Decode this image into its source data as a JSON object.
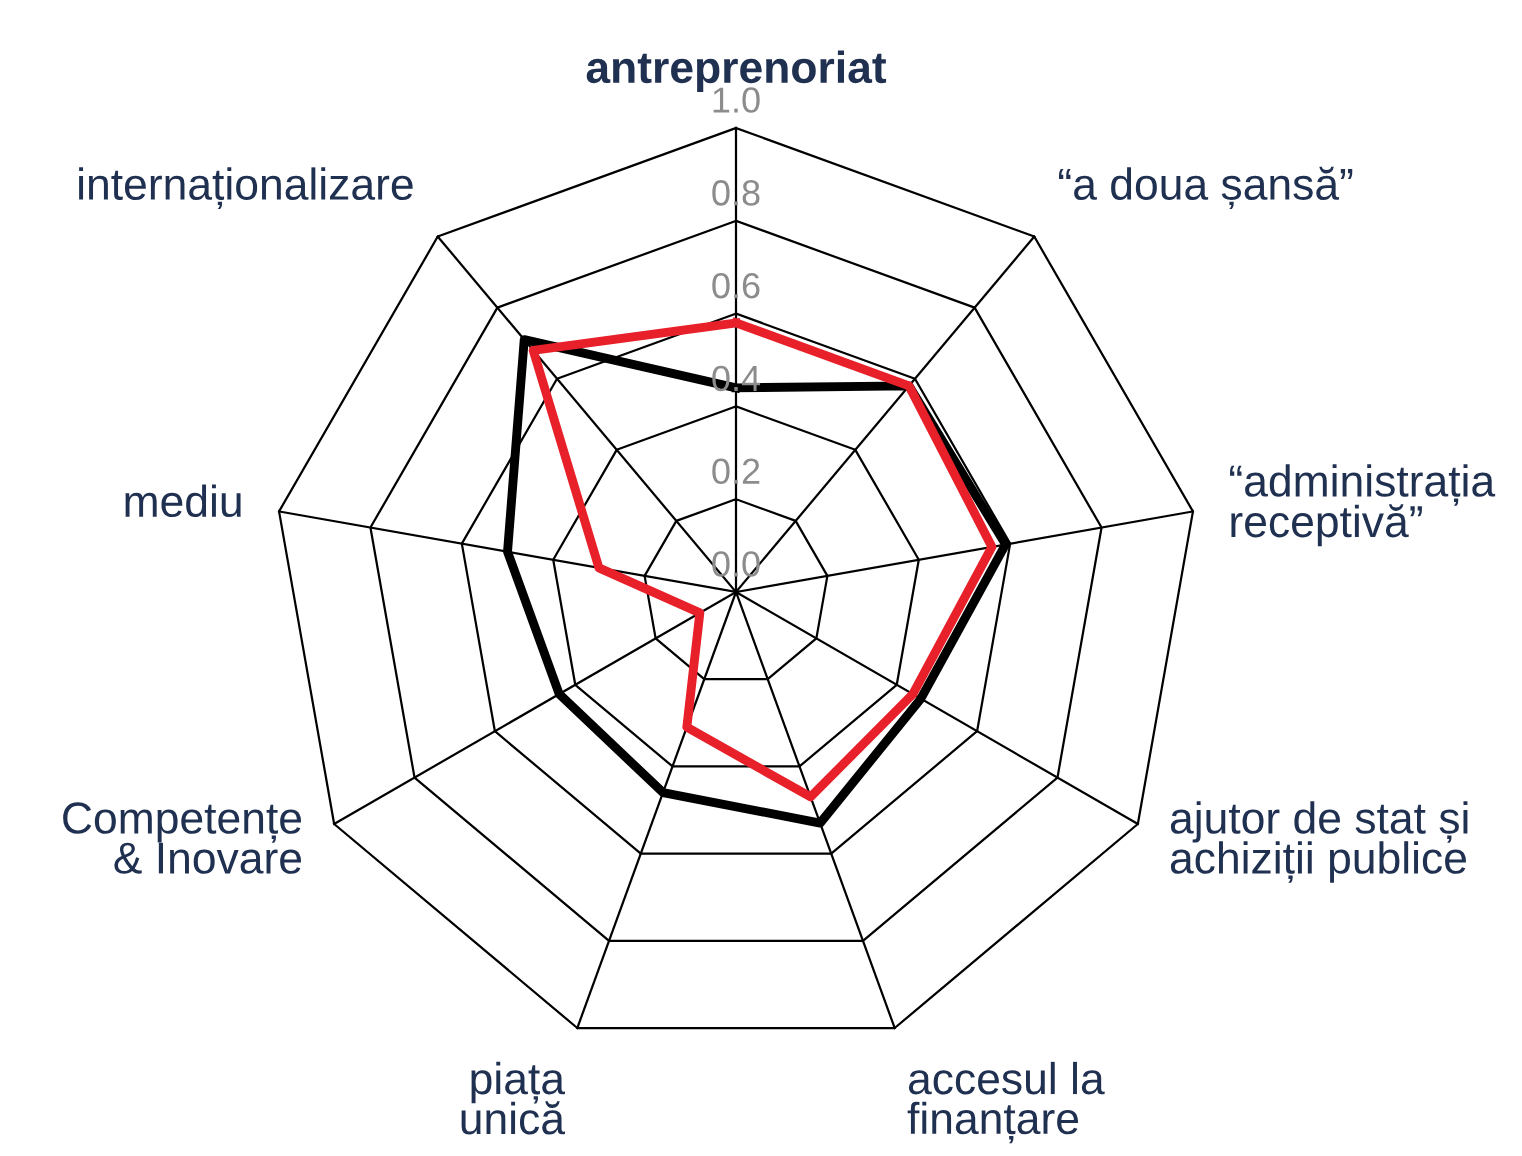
{
  "chart_data": {
    "type": "radar",
    "categories": [
      "antreprenoriat",
      "“a doua șansă”",
      "“administrația\nreceptivă”",
      "ajutor de stat și\nachiziții publice",
      "accesul la\nfinanțare",
      "piața\nunică",
      "Competențe\n& Inovare",
      "mediu",
      "internaționalizare"
    ],
    "series": [
      {
        "color": "#000000",
        "values": [
          0.44,
          0.58,
          0.59,
          0.46,
          0.53,
          0.46,
          0.44,
          0.5,
          0.71
        ]
      },
      {
        "color": "#e8202a",
        "values": [
          0.58,
          0.58,
          0.56,
          0.44,
          0.47,
          0.31,
          0.09,
          0.3,
          0.68
        ]
      }
    ],
    "ylim": [
      0,
      1
    ],
    "yticks": [
      {
        "value": 0,
        "label": "0.0"
      },
      {
        "value": 0.2,
        "label": "0.2"
      },
      {
        "value": 0.4,
        "label": "0.4"
      },
      {
        "value": 0.6,
        "label": "0.6"
      },
      {
        "value": 0.8,
        "label": "0.8"
      },
      {
        "value": 1,
        "label": "1.0"
      }
    ],
    "grid": true,
    "marker": "none",
    "line_style": "solid"
  }
}
